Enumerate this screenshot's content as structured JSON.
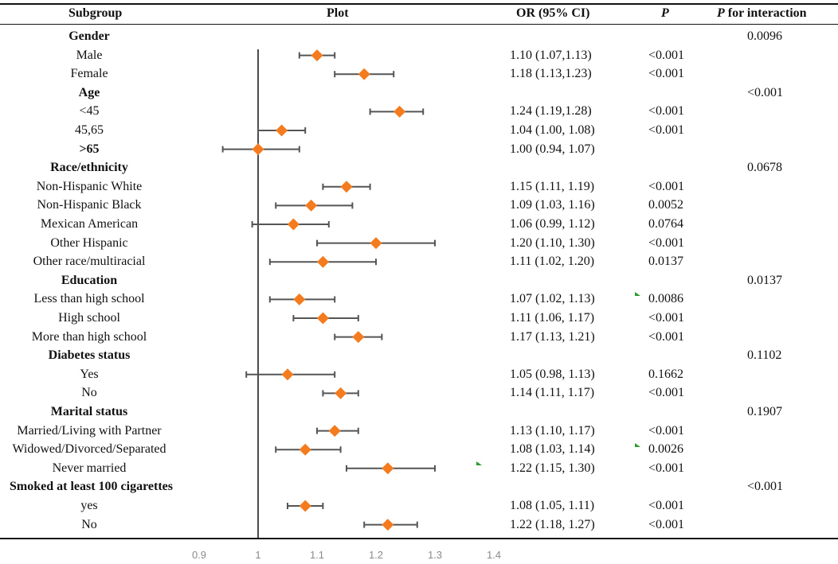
{
  "headers": {
    "subgroup": "Subgroup",
    "plot": "Plot",
    "or_ci": "OR (95% CI)",
    "p": "P",
    "p_interaction_p": "P",
    "p_interaction_rest": " for interaction"
  },
  "colors": {
    "marker": "#f47c1f",
    "ci_line": "#555555",
    "ref_line": "#111111",
    "axis_text": "#8a8a8a",
    "green_mark": "#2e9a2e"
  },
  "chart_data": {
    "type": "forest",
    "title": "",
    "xlabel": "",
    "xlim": [
      0.9,
      1.4
    ],
    "ticks": [
      "0.9",
      "1",
      "1.1",
      "1.2",
      "1.3",
      "1.4"
    ],
    "reference_line": 1,
    "rows": [
      {
        "label": "Gender",
        "header": true,
        "p_int": "0.0096"
      },
      {
        "label": "Male",
        "or": 1.1,
        "lo": 1.07,
        "hi": 1.13,
        "ci_text": "1.10 (1.07,1.13)",
        "p": "<0.001"
      },
      {
        "label": "Female",
        "or": 1.18,
        "lo": 1.13,
        "hi": 1.23,
        "ci_text": "1.18 (1.13,1.23)",
        "p": "<0.001"
      },
      {
        "label": "Age",
        "header": true,
        "p_int": "<0.001"
      },
      {
        "label": "<45",
        "or": 1.24,
        "lo": 1.19,
        "hi": 1.28,
        "ci_text": "1.24 (1.19,1.28)",
        "p": "<0.001"
      },
      {
        "label": "45,65",
        "or": 1.04,
        "lo": 1.0,
        "hi": 1.08,
        "ci_text": "1.04 (1.00, 1.08)",
        "p": "<0.001"
      },
      {
        "label": ">65",
        "bold": true,
        "or": 1.0,
        "lo": 0.94,
        "hi": 1.07,
        "ci_text": "1.00 (0.94, 1.07)",
        "p": ""
      },
      {
        "label": "Race/ethnicity",
        "header": true,
        "p_int": "0.0678"
      },
      {
        "label": "Non-Hispanic White",
        "or": 1.15,
        "lo": 1.11,
        "hi": 1.19,
        "ci_text": "1.15 (1.11, 1.19)",
        "p": "<0.001"
      },
      {
        "label": "Non-Hispanic Black",
        "or": 1.09,
        "lo": 1.03,
        "hi": 1.16,
        "ci_text": "1.09 (1.03, 1.16)",
        "p": "0.0052"
      },
      {
        "label": "Mexican American",
        "or": 1.06,
        "lo": 0.99,
        "hi": 1.12,
        "ci_text": "1.06 (0.99, 1.12)",
        "p": "0.0764"
      },
      {
        "label": "Other Hispanic",
        "or": 1.2,
        "lo": 1.1,
        "hi": 1.3,
        "ci_text": "1.20 (1.10, 1.30)",
        "p": "<0.001"
      },
      {
        "label": "Other race/multiracial",
        "or": 1.11,
        "lo": 1.02,
        "hi": 1.2,
        "ci_text": "1.11 (1.02, 1.20)",
        "p": "0.0137"
      },
      {
        "label": "Education",
        "header": true,
        "p_int": "0.0137"
      },
      {
        "label": "Less than high school",
        "or": 1.07,
        "lo": 1.02,
        "hi": 1.13,
        "ci_text": "1.07 (1.02, 1.13)",
        "p": "0.0086"
      },
      {
        "label": "High school",
        "or": 1.11,
        "lo": 1.06,
        "hi": 1.17,
        "ci_text": "1.11 (1.06, 1.17)",
        "p": "<0.001"
      },
      {
        "label": "More than high school",
        "or": 1.17,
        "lo": 1.13,
        "hi": 1.21,
        "ci_text": "1.17 (1.13, 1.21)",
        "p": "<0.001"
      },
      {
        "label": "Diabetes status",
        "header": true,
        "p_int": "0.1102"
      },
      {
        "label": "Yes",
        "or": 1.05,
        "lo": 0.98,
        "hi": 1.13,
        "ci_text": "1.05 (0.98, 1.13)",
        "p": "0.1662"
      },
      {
        "label": "No",
        "or": 1.14,
        "lo": 1.11,
        "hi": 1.17,
        "ci_text": "1.14 (1.11, 1.17)",
        "p": "<0.001"
      },
      {
        "label": "Marital status",
        "header": true,
        "p_int": "0.1907"
      },
      {
        "label": "Married/Living with Partner",
        "or": 1.13,
        "lo": 1.1,
        "hi": 1.17,
        "ci_text": "1.13 (1.10, 1.17)",
        "p": "<0.001"
      },
      {
        "label": "Widowed/Divorced/Separated",
        "or": 1.08,
        "lo": 1.03,
        "hi": 1.14,
        "ci_text": "1.08 (1.03, 1.14)",
        "p": "0.0026"
      },
      {
        "label": "Never married",
        "or": 1.22,
        "lo": 1.15,
        "hi": 1.3,
        "ci_text": "1.22 (1.15, 1.30)",
        "p": "<0.001"
      },
      {
        "label": "Smoked at least 100 cigarettes",
        "header": true,
        "p_int": "<0.001"
      },
      {
        "label": "yes",
        "or": 1.08,
        "lo": 1.05,
        "hi": 1.11,
        "ci_text": "1.08 (1.05, 1.11)",
        "p": "<0.001"
      },
      {
        "label": "No",
        "or": 1.22,
        "lo": 1.18,
        "hi": 1.27,
        "ci_text": "1.22 (1.18, 1.27)",
        "p": "<0.001"
      }
    ]
  }
}
